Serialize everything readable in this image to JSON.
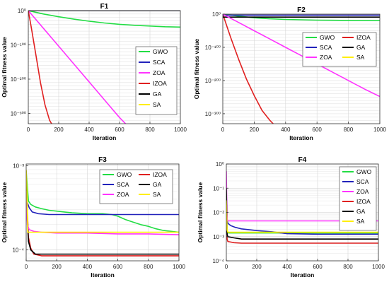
{
  "chart_data": [
    {
      "type": "line",
      "title": "F1",
      "xlabel": "Iteration",
      "ylabel": "Optimal fitness value",
      "yscale": "log",
      "xlim": [
        0,
        1000
      ],
      "ylim_exp": [
        -330,
        0
      ],
      "xticks": [
        0,
        200,
        400,
        600,
        800,
        1000
      ],
      "xtick_labels": [
        "0",
        "200",
        "400",
        "600",
        "800",
        "1000"
      ],
      "yticks": [
        0,
        -100,
        -200,
        -300
      ],
      "ytick_labels": [
        "10⁰",
        "10⁻¹⁰⁰",
        "10⁻²⁰⁰",
        "10⁻³⁰⁰"
      ],
      "grid": true,
      "legend_placement": "right",
      "legend_columns": 1,
      "series": [
        {
          "name": "GWO",
          "color": "#22dd44",
          "x": [
            0,
            100,
            200,
            300,
            400,
            500,
            600,
            700,
            800,
            900,
            1000
          ],
          "log10_y": [
            0,
            -10,
            -18,
            -25,
            -31,
            -36,
            -40,
            -43,
            -45,
            -47,
            -48
          ]
        },
        {
          "name": "SCA",
          "color": "#2222bb",
          "x": [
            0,
            1000
          ],
          "log10_y": [
            -0.3,
            -0.3
          ]
        },
        {
          "name": "ZOA",
          "color": "#ff33ff",
          "x": [
            0,
            100,
            200,
            300,
            400,
            500,
            600,
            650
          ],
          "log10_y": [
            0,
            -52,
            -104,
            -156,
            -208,
            -260,
            -312,
            -335
          ]
        },
        {
          "name": "IZOA",
          "color": "#e02020",
          "x": [
            0,
            20,
            50,
            80,
            110,
            140,
            160
          ],
          "log10_y": [
            0,
            -50,
            -130,
            -210,
            -275,
            -320,
            -335
          ]
        },
        {
          "name": "GA",
          "color": "#000000",
          "x": [
            0,
            1000
          ],
          "log10_y": [
            0.3,
            0.3
          ]
        },
        {
          "name": "SA",
          "color": "#ffee00",
          "x": [
            0,
            1000
          ],
          "log10_y": [
            0.9,
            0.9
          ]
        }
      ]
    },
    {
      "type": "line",
      "title": "F2",
      "xlabel": "Iteration",
      "ylabel": "Optimal fitness value",
      "yscale": "log",
      "xlim": [
        0,
        1000
      ],
      "ylim_exp": [
        -330,
        0
      ],
      "xticks": [
        0,
        200,
        400,
        600,
        800,
        1000
      ],
      "xtick_labels": [
        "0",
        "200",
        "400",
        "600",
        "800",
        "1000"
      ],
      "yticks": [
        0,
        -100,
        -200,
        -300
      ],
      "ytick_labels": [
        "10⁰",
        "10⁻¹⁰⁰",
        "10⁻²⁰⁰",
        "10⁻³⁰⁰"
      ],
      "grid": true,
      "legend_placement": "right",
      "legend_columns": 2,
      "series": [
        {
          "name": "GWO",
          "color": "#22dd44",
          "x": [
            0,
            100,
            200,
            300,
            400,
            500,
            600,
            700,
            800,
            900,
            1000
          ],
          "log10_y": [
            0,
            -6,
            -11,
            -14,
            -16,
            -17,
            -18,
            -18.5,
            -19,
            -19.3,
            -19.5
          ]
        },
        {
          "name": "IZOA",
          "color": "#e02020",
          "x": [
            0,
            50,
            100,
            150,
            200,
            250,
            300,
            330
          ],
          "log10_y": [
            0,
            -70,
            -135,
            -195,
            -245,
            -290,
            -320,
            -335
          ]
        },
        {
          "name": "SCA",
          "color": "#2222bb",
          "x": [
            0,
            1000
          ],
          "log10_y": [
            -3,
            -3
          ]
        },
        {
          "name": "GA",
          "color": "#000000",
          "x": [
            0,
            1000
          ],
          "log10_y": [
            -9,
            -9
          ]
        },
        {
          "name": "ZOA",
          "color": "#ff33ff",
          "x": [
            0,
            100,
            200,
            300,
            400,
            500,
            600,
            700,
            800,
            900,
            1000
          ],
          "log10_y": [
            0,
            -25,
            -50,
            -75,
            -100,
            -125,
            -150,
            -175,
            -200,
            -225,
            -248
          ]
        },
        {
          "name": "SA",
          "color": "#ffee00",
          "x": [
            0,
            1000
          ],
          "log10_y": [
            1,
            1
          ]
        }
      ]
    },
    {
      "type": "line",
      "title": "F3",
      "xlabel": "Iteration",
      "ylabel": "Optimal fitness value",
      "yscale": "log",
      "xlim": [
        0,
        1000
      ],
      "ylim_exp": [
        -4.13,
        -2.98
      ],
      "xticks": [
        0,
        200,
        400,
        600,
        800,
        1000
      ],
      "xtick_labels": [
        "0",
        "200",
        "400",
        "600",
        "800",
        "1000"
      ],
      "yticks": [
        -3,
        -4
      ],
      "ytick_labels": [
        "10⁻³",
        "10⁻⁴"
      ],
      "grid": true,
      "legend_placement": "top-right",
      "legend_columns": 2,
      "series": [
        {
          "name": "GWO",
          "color": "#22dd44",
          "x": [
            0,
            15,
            30,
            60,
            100,
            150,
            200,
            250,
            300,
            400,
            500,
            560,
            600,
            650,
            700,
            750,
            800,
            850,
            900,
            1000
          ],
          "log10_y": [
            -3.06,
            -3.42,
            -3.46,
            -3.49,
            -3.51,
            -3.53,
            -3.54,
            -3.55,
            -3.56,
            -3.57,
            -3.57,
            -3.58,
            -3.6,
            -3.64,
            -3.67,
            -3.7,
            -3.72,
            -3.75,
            -3.77,
            -3.79
          ]
        },
        {
          "name": "IZOA",
          "color": "#e02020",
          "x": [
            0,
            8,
            15,
            30,
            50,
            100,
            1000
          ],
          "log10_y": [
            -3.2,
            -3.55,
            -3.85,
            -3.98,
            -4.05,
            -4.07,
            -4.07
          ]
        },
        {
          "name": "SCA",
          "color": "#2222bb",
          "x": [
            0,
            20,
            40,
            80,
            150,
            1000
          ],
          "log10_y": [
            -3.4,
            -3.5,
            -3.55,
            -3.57,
            -3.58,
            -3.58
          ]
        },
        {
          "name": "GA",
          "color": "#000000",
          "x": [
            0,
            8,
            15,
            30,
            60,
            1000
          ],
          "log10_y": [
            -3.15,
            -3.65,
            -3.9,
            -4.0,
            -4.05,
            -4.05
          ]
        },
        {
          "name": "ZOA",
          "color": "#ff33ff",
          "x": [
            0,
            8,
            20,
            50,
            100,
            200,
            400,
            600,
            800,
            1000
          ],
          "log10_y": [
            -3.3,
            -3.7,
            -3.76,
            -3.78,
            -3.79,
            -3.8,
            -3.8,
            -3.81,
            -3.81,
            -3.82
          ]
        },
        {
          "name": "SA",
          "color": "#ffee00",
          "x": [
            0,
            5,
            10,
            1000
          ],
          "log10_y": [
            -3.05,
            -3.3,
            -3.79,
            -3.79
          ]
        }
      ]
    },
    {
      "type": "line",
      "title": "F4",
      "xlabel": "Iteration",
      "ylabel": "Optimal fitness value",
      "yscale": "log",
      "xlim": [
        0,
        1000
      ],
      "ylim_exp": [
        -4,
        0
      ],
      "xticks": [
        0,
        200,
        400,
        600,
        800,
        1000
      ],
      "xtick_labels": [
        "0",
        "200",
        "400",
        "600",
        "800",
        "1000"
      ],
      "yticks": [
        0,
        -1,
        -2,
        -3,
        -4
      ],
      "ytick_labels": [
        "10⁰",
        "10⁻¹",
        "10⁻²",
        "10⁻³",
        "10⁻⁴"
      ],
      "grid": true,
      "legend_placement": "top-right",
      "legend_columns": 1,
      "series": [
        {
          "name": "GWO",
          "color": "#22dd44",
          "x": [
            0,
            5,
            10,
            1000
          ],
          "log10_y": [
            -0.8,
            -2.8,
            -2.85,
            -2.85
          ]
        },
        {
          "name": "SCA",
          "color": "#2222bb",
          "x": [
            0,
            5,
            10,
            30,
            60,
            100,
            200,
            300,
            400,
            600,
            800,
            1000
          ],
          "log10_y": [
            -1.2,
            -2.3,
            -2.45,
            -2.55,
            -2.62,
            -2.68,
            -2.75,
            -2.8,
            -2.88,
            -2.9,
            -2.9,
            -2.9
          ]
        },
        {
          "name": "ZOA",
          "color": "#ff33ff",
          "x": [
            0,
            3,
            6,
            10,
            1000
          ],
          "log10_y": [
            -0.3,
            -1.5,
            -2.3,
            -2.35,
            -2.35
          ]
        },
        {
          "name": "IZOA",
          "color": "#e02020",
          "x": [
            0,
            5,
            10,
            50,
            100,
            1000
          ],
          "log10_y": [
            -1.3,
            -3.1,
            -3.2,
            -3.25,
            -3.27,
            -3.27
          ]
        },
        {
          "name": "GA",
          "color": "#000000",
          "x": [
            0,
            5,
            10,
            50,
            100,
            1000
          ],
          "log10_y": [
            -1.0,
            -2.9,
            -3.0,
            -3.05,
            -3.1,
            -3.1
          ]
        },
        {
          "name": "SA",
          "color": "#ffee00",
          "x": [
            0,
            5,
            10,
            1000
          ],
          "log10_y": [
            -1.5,
            -2.7,
            -2.82,
            -2.82
          ]
        }
      ]
    }
  ]
}
